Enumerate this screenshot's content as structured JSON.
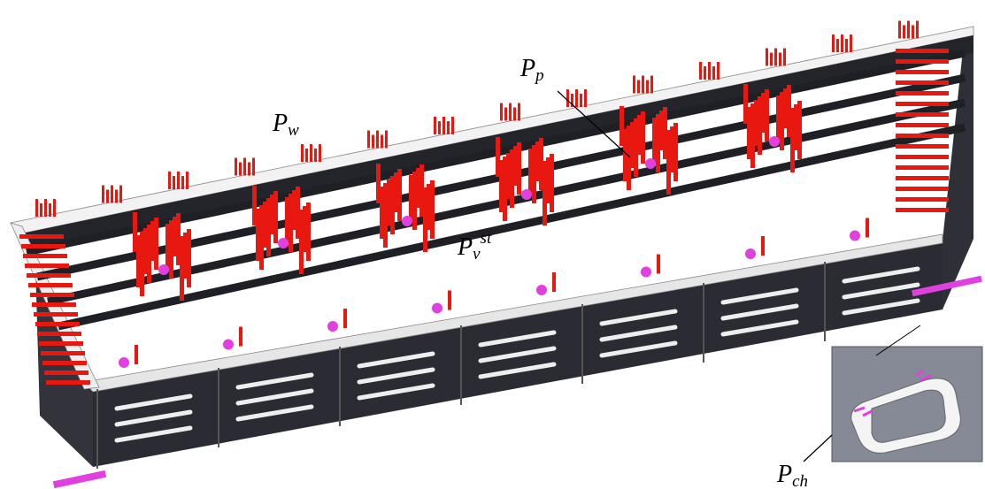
{
  "labels": {
    "pw": {
      "main": "P",
      "sub": "w"
    },
    "pp": {
      "main": "P",
      "sub": "p"
    },
    "pv": {
      "main": "P",
      "sub": "v",
      "sup": "st"
    },
    "pch": {
      "main": "P",
      "sub": "ch"
    }
  }
}
